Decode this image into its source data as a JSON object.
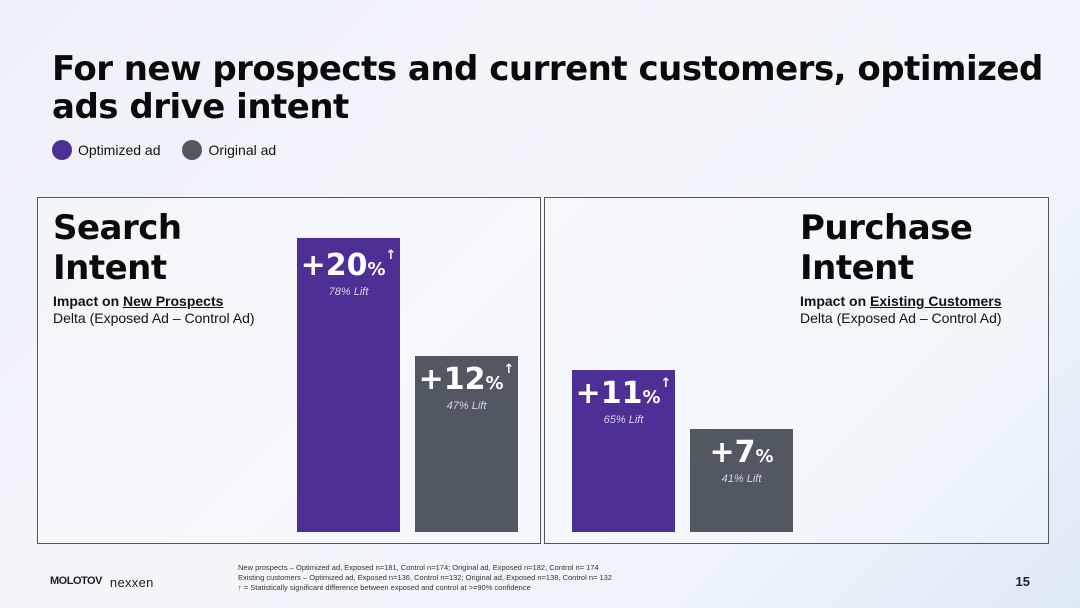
{
  "title": "For new prospects and current customers, optimized ads drive intent",
  "legend": [
    {
      "label": "Optimized ad",
      "color": "#4e2f96"
    },
    {
      "label": "Original ad",
      "color": "#515862"
    }
  ],
  "panels": [
    {
      "heading_line1": "Search",
      "heading_line2": "Intent",
      "sub_prefix": "Impact on ",
      "sub_underlined": "New Prospects",
      "delta": "Delta (Exposed Ad – Control Ad)"
    },
    {
      "heading_line1": "Purchase",
      "heading_line2": "Intent",
      "sub_prefix": "Impact on ",
      "sub_underlined": "Existing Customers",
      "delta": "Delta (Exposed Ad – Control Ad)"
    }
  ],
  "chart_data": [
    {
      "type": "bar",
      "title": "Search Intent",
      "subtitle": "Impact on New Prospects",
      "ylabel": "Delta (Exposed Ad – Control Ad)",
      "categories": [
        "Optimized ad",
        "Original ad"
      ],
      "values": [
        20,
        12
      ],
      "bars": [
        {
          "value": 20,
          "sign": "+",
          "number": "20",
          "unit": "%",
          "significance_marker": "↑",
          "lift": "78% Lift",
          "color": "#4e2f96"
        },
        {
          "value": 12,
          "sign": "+",
          "number": "12",
          "unit": "%",
          "significance_marker": "↑",
          "lift": "47% Lift",
          "color": "#515862"
        }
      ]
    },
    {
      "type": "bar",
      "title": "Purchase Intent",
      "subtitle": "Impact on Existing Customers",
      "ylabel": "Delta (Exposed Ad – Control Ad)",
      "categories": [
        "Optimized ad",
        "Original ad"
      ],
      "values": [
        11,
        7
      ],
      "bars": [
        {
          "value": 11,
          "sign": "+",
          "number": "11",
          "unit": "%",
          "significance_marker": "↑",
          "lift": "65% Lift",
          "color": "#4e2f96"
        },
        {
          "value": 7,
          "sign": "+",
          "number": "7",
          "unit": "%",
          "significance_marker": "",
          "lift": "41% Lift",
          "color": "#515862"
        }
      ]
    }
  ],
  "footnote": {
    "line1": "New prospects – Optimized ad, Exposed n=181, Control n=174; Original ad, Exposed n=182, Control n= 174",
    "line2": "Existing customers – Optimized ad, Exposed n=136, Control n=132; Original ad, Exposed n=138, Control n= 132",
    "line3": "↑ = Statistically significant difference between exposed and control at >=90% confidence"
  },
  "page_number": "15",
  "logos": {
    "left": "MOLOTOV",
    "right": "nexxen"
  }
}
